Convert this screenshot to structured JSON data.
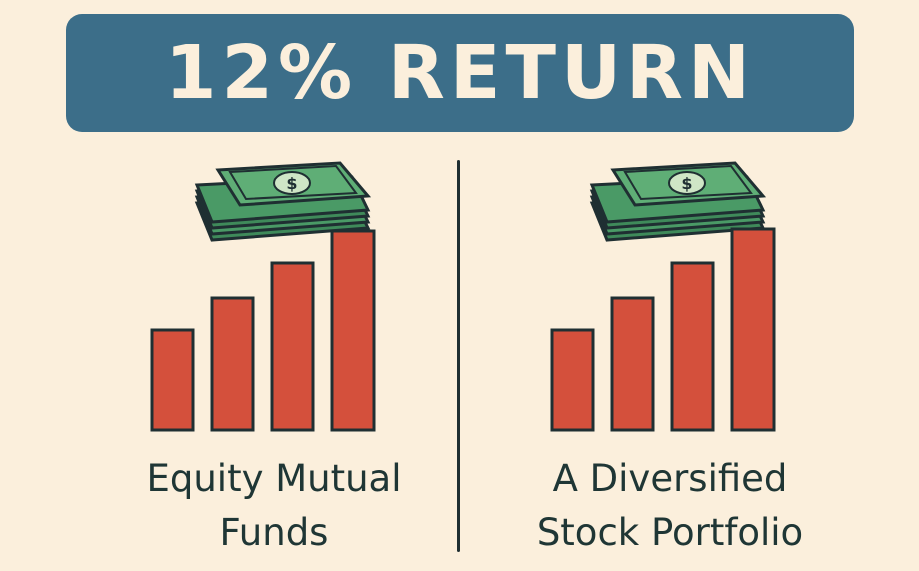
{
  "banner": {
    "title": "12% RETURN"
  },
  "panels": [
    {
      "label_line1": "Equity Mutual",
      "label_line2": "Funds",
      "bar_levels": [
        1,
        2,
        3,
        4
      ],
      "icon": "cash-stack-icon"
    },
    {
      "label_line1": "A Diversified",
      "label_line2": "Stock Portfolio",
      "bar_levels": [
        1,
        2,
        3,
        4
      ],
      "icon": "cash-stack-icon"
    }
  ],
  "colors": {
    "background": "#fbefdc",
    "banner": "#3c6e89",
    "banner_text": "#fbefdc",
    "bar": "#d4503c",
    "cash": "#3f8a5a",
    "outline": "#1f2f32",
    "text": "#1f3635"
  }
}
